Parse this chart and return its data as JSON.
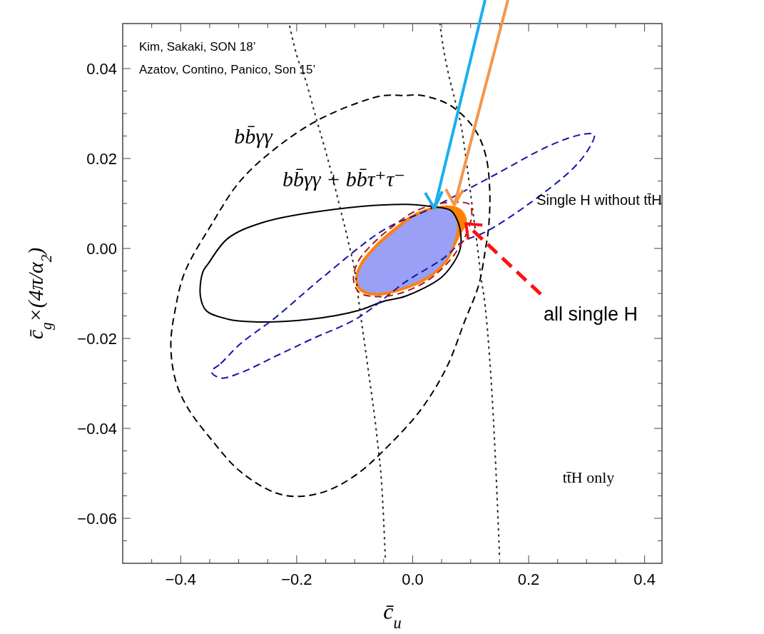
{
  "chart_data": {
    "type": "line",
    "xlabel": "c̄$_{u}$",
    "ylabel": "c̄$_{g}$×(4π/α$_{2}$)",
    "xlim": [
      -0.5,
      0.43
    ],
    "ylim": [
      -0.07,
      0.05
    ],
    "xticks": [
      {
        "value": -0.4,
        "label": "−0.4"
      },
      {
        "value": -0.2,
        "label": "−0.2"
      },
      {
        "value": 0,
        "label": "0.0"
      },
      0.2,
      0.4,
      {
        "value": -0.45,
        "label": null
      },
      {
        "value": -0.35,
        "label": null
      },
      {
        "value": -0.3,
        "label": null
      },
      {
        "value": -0.25,
        "label": null
      },
      {
        "value": -0.15,
        "label": null
      },
      {
        "value": -0.1,
        "label": null
      },
      {
        "value": -0.05,
        "label": null
      },
      {
        "value": 0.05,
        "label": null
      },
      {
        "value": 0.1,
        "label": null
      },
      {
        "value": 0.15,
        "label": null
      },
      {
        "value": 0.25,
        "label": null
      },
      {
        "value": 0.3,
        "label": null
      },
      {
        "value": 0.35,
        "label": null
      }
    ],
    "yticks": [
      {
        "value": -0.06,
        "label": "−0.06"
      },
      {
        "value": -0.04,
        "label": "−0.04"
      },
      {
        "value": -0.02,
        "label": "−0.02"
      },
      {
        "value": 0,
        "label": "0.00"
      },
      0.02,
      0.04,
      {
        "value": -0.065,
        "label": null
      },
      {
        "value": -0.055,
        "label": null
      },
      {
        "value": -0.05,
        "label": null
      },
      {
        "value": -0.045,
        "label": null
      },
      {
        "value": -0.035,
        "label": null
      },
      {
        "value": -0.03,
        "label": null
      },
      {
        "value": -0.025,
        "label": null
      },
      {
        "value": -0.015,
        "label": null
      },
      {
        "value": -0.01,
        "label": null
      },
      {
        "value": -0.005,
        "label": null
      },
      {
        "value": 0.005,
        "label": null
      },
      {
        "value": 0.01,
        "label": null
      },
      {
        "value": 0.015,
        "label": null
      },
      {
        "value": 0.025,
        "label": null
      },
      {
        "value": 0.03,
        "label": null
      },
      {
        "value": 0.035,
        "label": null
      },
      {
        "value": 0.045,
        "label": null
      }
    ],
    "marker": "none",
    "series": [
      {
        "type": "area",
        "color": "#ff8000",
        "x": [
          -0.098,
          -0.09,
          -0.064,
          -0.034,
          0.0,
          0.039,
          0.074,
          0.088,
          0.092,
          0.083,
          0.074,
          0.059,
          0.025,
          -0.025,
          -0.061,
          -0.09
        ],
        "values": [
          -0.0069,
          -0.0034,
          0.0007,
          0.0042,
          0.0074,
          0.0092,
          0.0092,
          0.0079,
          0.0055,
          0.0034,
          0.001,
          -0.0028,
          -0.0068,
          -0.0095,
          -0.0104,
          -0.0094
        ]
      },
      {
        "type": "area",
        "color": "#99a0f5",
        "x": [
          -0.094,
          -0.086,
          -0.061,
          -0.033,
          0.0,
          0.04,
          0.067,
          0.076,
          0.071,
          0.058,
          0.025,
          -0.025,
          -0.061,
          -0.086
        ],
        "values": [
          -0.0069,
          -0.0037,
          0.0002,
          0.0034,
          0.0066,
          0.0087,
          0.0082,
          0.005,
          0.0018,
          -0.0021,
          -0.0061,
          -0.0089,
          -0.0098,
          -0.009
        ]
      },
      {
        "color": "#333333",
        "line_style": "dotted",
        "x": [
          -0.212,
          -0.2,
          -0.184,
          -0.168,
          -0.147,
          -0.126,
          -0.11,
          -0.098,
          -0.094,
          -0.077,
          -0.061,
          -0.053,
          -0.047
        ],
        "values": [
          0.0494,
          0.043,
          0.0372,
          0.0297,
          0.0202,
          0.0095,
          0.001,
          -0.0065,
          -0.0106,
          -0.0266,
          -0.0425,
          -0.0532,
          -0.0691
        ]
      },
      {
        "color": "#333333",
        "line_style": "dotted",
        "x": [
          0.047,
          0.053,
          0.061,
          0.074,
          0.086,
          0.094,
          0.102,
          0.11,
          0.119,
          0.123,
          0.131,
          0.139,
          0.145,
          0.15
        ],
        "values": [
          0.05,
          0.0446,
          0.0393,
          0.0325,
          0.0255,
          0.0181,
          0.0101,
          0.0022,
          -0.0074,
          -0.0106,
          -0.0213,
          -0.0372,
          -0.0532,
          -0.0691
        ]
      }
    ],
    "annotations": [
      "Kim, Sakaki, SON 18’",
      "Azatov, Contino,  Panico, Son 15’",
      "bb̄γγ",
      "bb̄γγ + bb̄τ⁺τ⁻",
      "Single H without tt̄H",
      {
        "text": "all single H",
        "x": 0.092,
        "y": 0.0055
      },
      "tt̄H only"
    ]
  }
}
